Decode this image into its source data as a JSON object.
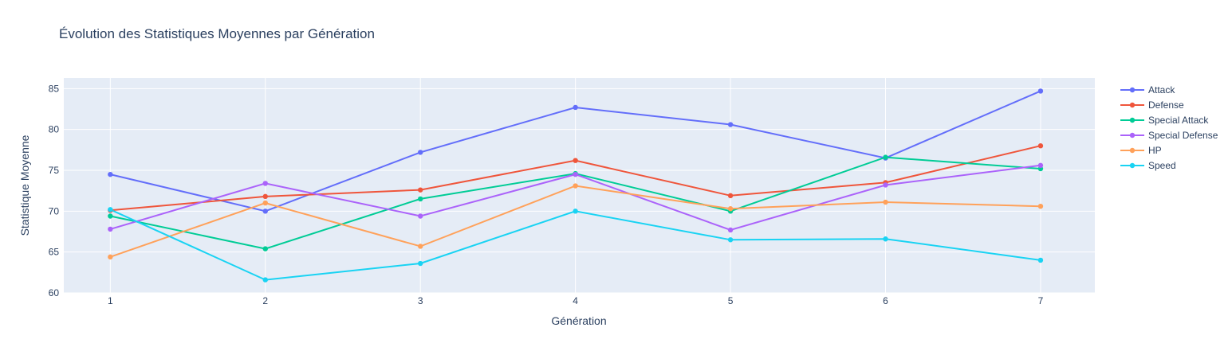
{
  "chart_data": {
    "type": "line",
    "title": "Évolution des Statistiques Moyennes par Génération",
    "xlabel": "Génération",
    "ylabel": "Statistique Moyenne",
    "x": [
      1,
      2,
      3,
      4,
      5,
      6,
      7
    ],
    "xlim": [
      0.7,
      7.35
    ],
    "ylim": [
      60,
      86.3
    ],
    "yticks": [
      60,
      65,
      70,
      75,
      80,
      85
    ],
    "xticks": [
      1,
      2,
      3,
      4,
      5,
      6,
      7
    ],
    "grid": true,
    "legend_position": "right",
    "plot_background": "#e5ecf6",
    "series": [
      {
        "name": "Attack",
        "color": "#636efa",
        "values": [
          74.5,
          70.0,
          77.2,
          82.7,
          80.6,
          76.5,
          84.7
        ]
      },
      {
        "name": "Defense",
        "color": "#ef553b",
        "values": [
          70.1,
          71.8,
          72.6,
          76.2,
          71.9,
          73.5,
          78.0
        ]
      },
      {
        "name": "Special Attack",
        "color": "#00cc96",
        "values": [
          69.4,
          65.4,
          71.5,
          74.6,
          70.0,
          76.6,
          75.2
        ]
      },
      {
        "name": "Special Defense",
        "color": "#ab63fa",
        "values": [
          67.8,
          73.4,
          69.4,
          74.5,
          67.7,
          73.2,
          75.6
        ]
      },
      {
        "name": "HP",
        "color": "#ffa15a",
        "values": [
          64.4,
          71.0,
          65.7,
          73.1,
          70.3,
          71.1,
          70.6
        ]
      },
      {
        "name": "Speed",
        "color": "#19d3f3",
        "values": [
          70.2,
          61.6,
          63.6,
          70.0,
          66.5,
          66.6,
          64.0
        ]
      }
    ]
  }
}
